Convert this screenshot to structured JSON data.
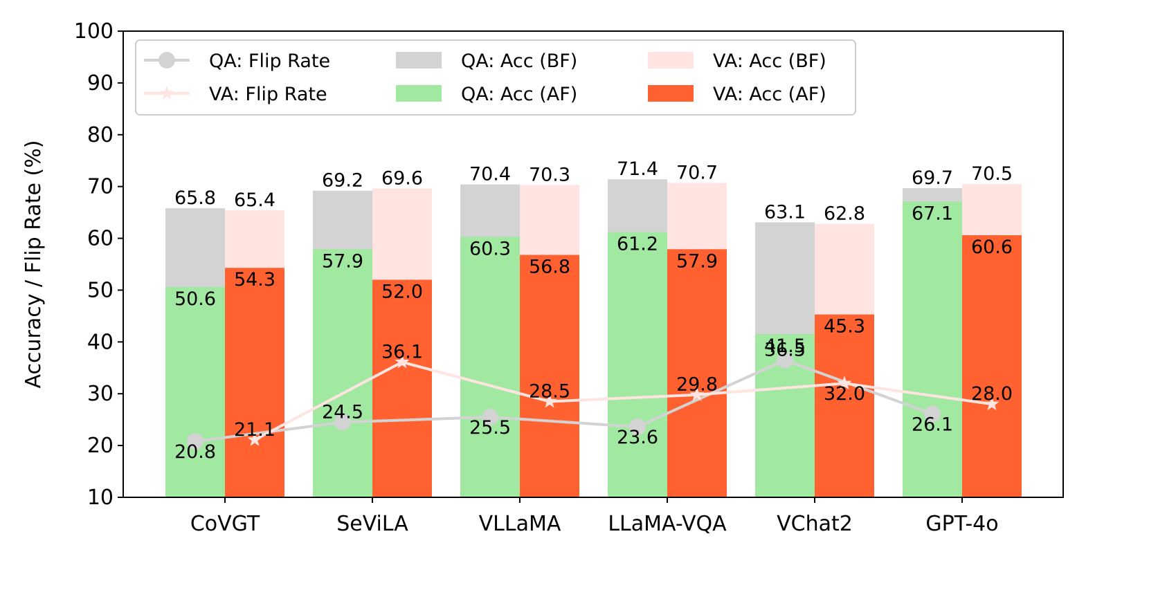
{
  "chart_data": {
    "type": "bar",
    "title": "",
    "xlabel": "",
    "ylabel": "Accuracy / Flip Rate (%)",
    "ylim": [
      10,
      100
    ],
    "yticks": [
      10,
      20,
      30,
      40,
      50,
      60,
      70,
      80,
      90,
      100
    ],
    "categories": [
      "CoVGT",
      "SeViLA",
      "VLLaMA",
      "LLaMA-VQA",
      "VChat2",
      "GPT-4o"
    ],
    "series": [
      {
        "name": "QA: Acc (BF)",
        "kind": "bar",
        "group": "QA",
        "layer": "back",
        "color": "#d3d3d3",
        "values": [
          65.8,
          69.2,
          70.4,
          71.4,
          63.1,
          69.7
        ],
        "labels": [
          "65.8",
          "69.2",
          "70.4",
          "71.4",
          "63.1",
          "69.7"
        ]
      },
      {
        "name": "QA: Acc (AF)",
        "kind": "bar",
        "group": "QA",
        "layer": "front",
        "color": "#a1e8a1",
        "values": [
          50.6,
          57.9,
          60.3,
          61.2,
          41.5,
          67.1
        ],
        "labels": [
          "50.6",
          "57.9",
          "60.3",
          "61.2",
          "41.5",
          "67.1"
        ]
      },
      {
        "name": "VA: Acc (BF)",
        "kind": "bar",
        "group": "VA",
        "layer": "back",
        "color": "#ffe4e1",
        "values": [
          65.4,
          69.6,
          70.3,
          70.7,
          62.8,
          70.5
        ],
        "labels": [
          "65.4",
          "69.6",
          "70.3",
          "70.7",
          "62.8",
          "70.5"
        ]
      },
      {
        "name": "VA: Acc (AF)",
        "kind": "bar",
        "group": "VA",
        "layer": "front",
        "color": "#ff6230",
        "values": [
          54.3,
          52.0,
          56.8,
          57.9,
          45.3,
          60.6
        ],
        "labels": [
          "54.3",
          "52.0",
          "56.8",
          "57.9",
          "45.3",
          "60.6"
        ]
      },
      {
        "name": "QA: Flip Rate",
        "kind": "line",
        "group": "QA",
        "marker": "circle",
        "color": "#d3d3d3",
        "values": [
          20.8,
          24.5,
          25.5,
          23.6,
          36.5,
          26.1
        ],
        "labels": [
          "20.8",
          "24.5",
          "25.5",
          "23.6",
          "36.5",
          "26.1"
        ]
      },
      {
        "name": "VA: Flip Rate",
        "kind": "line",
        "group": "VA",
        "marker": "star",
        "color": "#ffe4e1",
        "values": [
          21.1,
          36.1,
          28.5,
          29.8,
          32.0,
          28.0
        ],
        "labels": [
          "21.1",
          "36.1",
          "28.5",
          "29.8",
          "32.0",
          "28.0"
        ]
      }
    ],
    "legend": {
      "position": "top-left",
      "columns": [
        [
          "QA: Flip Rate",
          "VA: Flip Rate"
        ],
        [
          "QA: Acc (BF)",
          "QA: Acc (AF)"
        ],
        [
          "VA: Acc (BF)",
          "VA: Acc (AF)"
        ]
      ]
    },
    "grid": false
  }
}
